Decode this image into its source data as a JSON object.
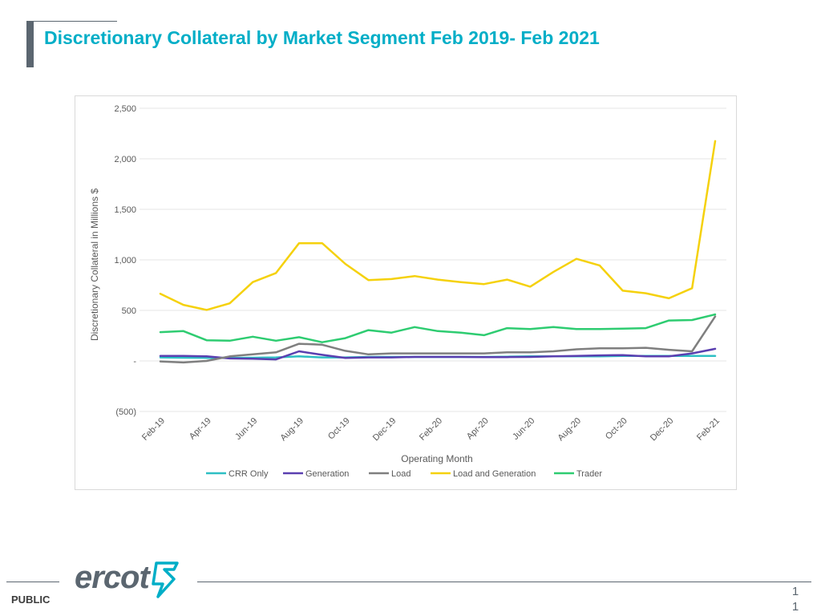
{
  "slide": {
    "title": "Discretionary Collateral by Market Segment Feb 2019- Feb 2021",
    "footer_label": "PUBLIC",
    "page_number": "1\n1",
    "logo_text": "ercot"
  },
  "colors": {
    "title": "#00aec7",
    "accent_bar": "#5b6670",
    "logo_mark": "#00aec7"
  },
  "chart_data": {
    "type": "line",
    "title": "",
    "xlabel": "Operating Month",
    "ylabel": "Discretionary Collateral in Millions $",
    "ylim": [
      -500,
      2500
    ],
    "yticks": [
      -500,
      0,
      500,
      1000,
      1500,
      2000,
      2500
    ],
    "ytick_labels": [
      "(500)",
      "-",
      "500",
      "1,000",
      "1,500",
      "2,000",
      "2,500"
    ],
    "grid": true,
    "legend_position": "bottom",
    "x": [
      "Feb-19",
      "Mar-19",
      "Apr-19",
      "May-19",
      "Jun-19",
      "Jul-19",
      "Aug-19",
      "Sep-19",
      "Oct-19",
      "Nov-19",
      "Dec-19",
      "Jan-20",
      "Feb-20",
      "Mar-20",
      "Apr-20",
      "May-20",
      "Jun-20",
      "Jul-20",
      "Aug-20",
      "Sep-20",
      "Oct-20",
      "Nov-20",
      "Dec-20",
      "Jan-21",
      "Feb-21"
    ],
    "xtick_labels": [
      "Feb-19",
      "Apr-19",
      "Jun-19",
      "Aug-19",
      "Oct-19",
      "Dec-19",
      "Feb-20",
      "Apr-20",
      "Jun-20",
      "Aug-20",
      "Oct-20",
      "Dec-20",
      "Feb-21"
    ],
    "series": [
      {
        "name": "CRR Only",
        "color": "#2ebfc4",
        "values": [
          35,
          32,
          30,
          30,
          32,
          35,
          45,
          35,
          35,
          40,
          40,
          40,
          40,
          40,
          40,
          42,
          45,
          45,
          45,
          45,
          50,
          50,
          50,
          50,
          50
        ]
      },
      {
        "name": "Generation",
        "color": "#5a3fb0",
        "values": [
          50,
          50,
          45,
          25,
          22,
          15,
          95,
          60,
          30,
          35,
          35,
          40,
          40,
          40,
          38,
          38,
          40,
          45,
          50,
          55,
          58,
          45,
          45,
          75,
          120
        ]
      },
      {
        "name": "Load",
        "color": "#7f7f7f",
        "values": [
          -5,
          -15,
          0,
          45,
          65,
          85,
          170,
          160,
          100,
          65,
          75,
          75,
          75,
          75,
          75,
          85,
          85,
          95,
          115,
          125,
          125,
          130,
          110,
          95,
          440
        ]
      },
      {
        "name": "Load and Generation",
        "color": "#f5d10c",
        "values": [
          665,
          555,
          505,
          570,
          780,
          870,
          1165,
          1165,
          960,
          800,
          810,
          840,
          805,
          780,
          760,
          805,
          735,
          880,
          1010,
          945,
          695,
          670,
          620,
          720,
          2175
        ]
      },
      {
        "name": "Trader",
        "color": "#2ecc71",
        "values": [
          285,
          295,
          205,
          200,
          240,
          200,
          235,
          185,
          225,
          305,
          280,
          335,
          295,
          280,
          255,
          325,
          315,
          335,
          315,
          315,
          320,
          325,
          400,
          405,
          460
        ]
      }
    ]
  }
}
